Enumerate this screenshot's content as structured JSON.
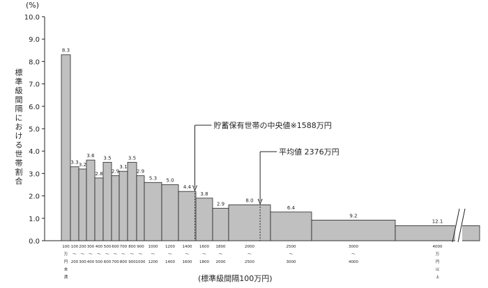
{
  "chart_data": {
    "type": "bar",
    "ylabel": "標準級間隔における世帯割合",
    "yunit": "(%)",
    "xlabel": "(標準級間隔100万円)",
    "ylim": [
      0,
      10
    ],
    "yticks": [
      "0.0",
      "1.0",
      "2.0",
      "3.0",
      "4.0",
      "5.0",
      "6.0",
      "7.0",
      "8.0",
      "9.0",
      "10.0"
    ],
    "bins": [
      {
        "from": 0,
        "to": 100,
        "value": 8.3,
        "label": "8.3",
        "tick": [
          "100",
          "万",
          "円",
          "未",
          "満"
        ]
      },
      {
        "from": 100,
        "to": 200,
        "value": 3.3,
        "label": "3.3",
        "tick": [
          "100",
          "200"
        ]
      },
      {
        "from": 200,
        "to": 300,
        "value": 3.2,
        "label": "3.2",
        "tick": [
          "200",
          "300"
        ]
      },
      {
        "from": 300,
        "to": 400,
        "value": 3.6,
        "label": "3.6",
        "tick": [
          "300",
          "400"
        ]
      },
      {
        "from": 400,
        "to": 500,
        "value": 2.8,
        "label": "2.8",
        "tick": [
          "400",
          "500"
        ]
      },
      {
        "from": 500,
        "to": 600,
        "value": 3.5,
        "label": "3.5",
        "tick": [
          "500",
          "600"
        ]
      },
      {
        "from": 600,
        "to": 700,
        "value": 2.9,
        "label": "2.9",
        "tick": [
          "600",
          "700"
        ]
      },
      {
        "from": 700,
        "to": 800,
        "value": 3.1,
        "label": "3.1",
        "tick": [
          "700",
          "800"
        ]
      },
      {
        "from": 800,
        "to": 900,
        "value": 3.5,
        "label": "3.5",
        "tick": [
          "800",
          "900"
        ]
      },
      {
        "from": 900,
        "to": 1000,
        "value": 2.9,
        "label": "2.9",
        "tick": [
          "900",
          "1000"
        ]
      },
      {
        "from": 1000,
        "to": 1200,
        "value": 2.6,
        "label": "5.3",
        "tick": [
          "1000",
          "1200"
        ]
      },
      {
        "from": 1200,
        "to": 1400,
        "value": 2.5,
        "label": "5.0",
        "tick": [
          "1200",
          "1400"
        ]
      },
      {
        "from": 1400,
        "to": 1600,
        "value": 2.2,
        "label": "4.4",
        "tick": [
          "1400",
          "1600"
        ]
      },
      {
        "from": 1600,
        "to": 1800,
        "value": 1.9,
        "label": "3.8",
        "tick": [
          "1600",
          "1800"
        ]
      },
      {
        "from": 1800,
        "to": 2000,
        "value": 1.45,
        "label": "2.9",
        "tick": [
          "1800",
          "2000"
        ]
      },
      {
        "from": 2000,
        "to": 2500,
        "value": 1.6,
        "label": "8.0",
        "tick": [
          "2000",
          "2500"
        ]
      },
      {
        "from": 2500,
        "to": 3000,
        "value": 1.28,
        "label": "6.4",
        "tick": [
          "2500",
          "3000"
        ]
      },
      {
        "from": 3000,
        "to": 4000,
        "value": 0.92,
        "label": "9.2",
        "tick": [
          "3000",
          "4000"
        ]
      },
      {
        "from": 4000,
        "to": 4500,
        "value": 0.67,
        "label": "12.1",
        "tick": [
          "4000",
          "万",
          "円",
          "以",
          "上"
        ]
      }
    ],
    "annotations": [
      {
        "text": "貯蓄保有世帯の中央値※1588万円",
        "x": 1588
      },
      {
        "text": "平均値 2376万円",
        "x": 2376
      }
    ],
    "colors": {
      "bar": "#c0c0c0",
      "bar_stroke": "#222222",
      "last_bar_label": "#8aa0c0"
    }
  }
}
